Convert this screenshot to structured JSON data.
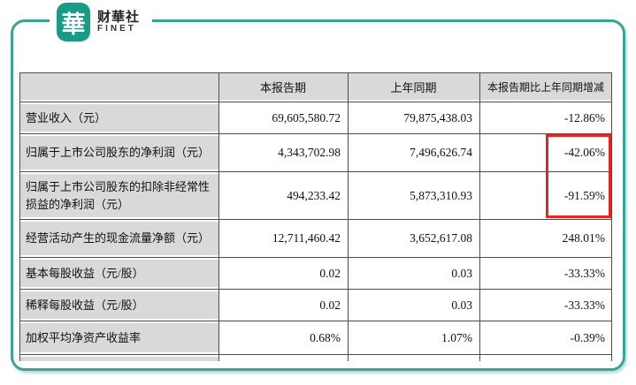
{
  "brand": {
    "logo_glyph": "華",
    "name_cn": "财華社",
    "name_en": "FINET"
  },
  "colors": {
    "frame_teal": "#3ba295",
    "logo_teal": "#1a9b87",
    "cell_gray": "#d9d9d9",
    "grid_line": "#4d4d4d",
    "highlight_red": "#e32524"
  },
  "table": {
    "headers": [
      "",
      "本报告期",
      "上年同期",
      "本报告期比上年同期增减"
    ],
    "rows": [
      {
        "label": "营业收入（元）",
        "current": "69,605,580.72",
        "prior": "79,875,438.03",
        "change": "-12.86%"
      },
      {
        "label": "归属于上市公司股东的净利润（元）",
        "current": "4,343,702.98",
        "prior": "7,496,626.74",
        "change": "-42.06%"
      },
      {
        "label": "归属于上市公司股东的扣除非经常性损益的净利润（元）",
        "current": "494,233.42",
        "prior": "5,873,310.93",
        "change": "-91.59%"
      },
      {
        "label": "经营活动产生的现金流量净额（元）",
        "current": "12,711,460.42",
        "prior": "3,652,617.08",
        "change": "248.01%"
      },
      {
        "label": "基本每股收益（元/股）",
        "current": "0.02",
        "prior": "0.03",
        "change": "-33.33%"
      },
      {
        "label": "稀释每股收益（元/股）",
        "current": "0.02",
        "prior": "0.03",
        "change": "-33.33%"
      },
      {
        "label": "加权平均净资产收益率",
        "current": "0.68%",
        "prior": "1.07%",
        "change": "-0.39%"
      }
    ],
    "highlighted_changes": [
      "-42.06%",
      "-91.59%"
    ]
  }
}
